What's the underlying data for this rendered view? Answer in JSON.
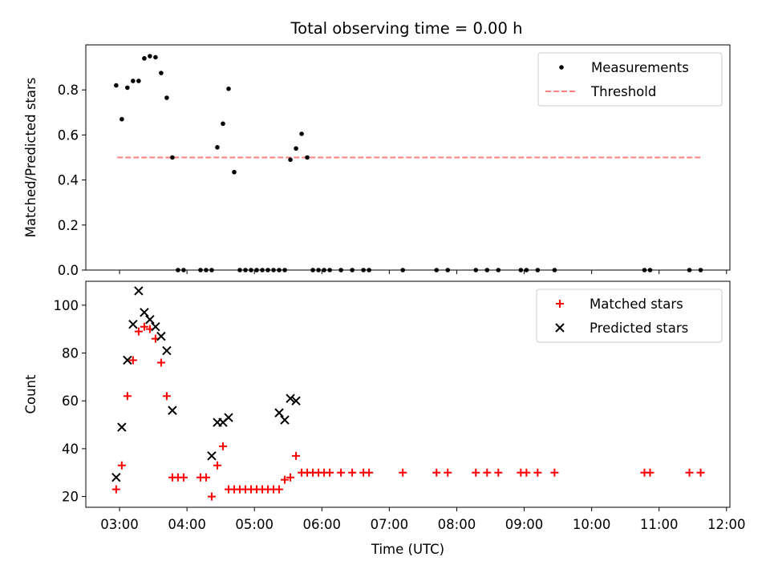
{
  "figure_title": "Total observing time = 0.00 h",
  "colors": {
    "measurement": "#000000",
    "threshold": "#ff7f7f",
    "matched": "#ff0000",
    "predicted": "#000000"
  },
  "chart_data": [
    {
      "type": "scatter",
      "panel": "top",
      "ylabel": "Matched/Predicted stars",
      "xlabel": "",
      "xlim_hours": [
        2.5,
        12.05
      ],
      "ylim": [
        0,
        1.0
      ],
      "yticks": [
        0.0,
        0.2,
        0.4,
        0.6,
        0.8
      ],
      "ytick_labels": [
        "0.0",
        "0.2",
        "0.4",
        "0.6",
        "0.8"
      ],
      "legend": {
        "position": "top-right",
        "entries": [
          "Measurements",
          "Threshold"
        ]
      },
      "threshold": {
        "name": "Threshold",
        "y": 0.5,
        "x_start": "02:58",
        "x_end": "11:37"
      },
      "series": [
        {
          "name": "Measurements",
          "x": [
            "02:57",
            "03:02",
            "03:07",
            "03:12",
            "03:17",
            "03:22",
            "03:27",
            "03:32",
            "03:37",
            "03:42",
            "03:47",
            "03:52",
            "03:57",
            "04:12",
            "04:17",
            "04:22",
            "04:27",
            "04:32",
            "04:37",
            "04:42",
            "04:47",
            "04:52",
            "04:57",
            "05:02",
            "05:07",
            "05:12",
            "05:17",
            "05:22",
            "05:27",
            "05:32",
            "05:37",
            "05:42",
            "05:47",
            "05:52",
            "05:57",
            "06:02",
            "06:07",
            "06:17",
            "06:27",
            "06:37",
            "06:42",
            "07:12",
            "07:42",
            "07:52",
            "08:17",
            "08:27",
            "08:37",
            "08:57",
            "09:02",
            "09:12",
            "09:27",
            "10:47",
            "10:52",
            "11:27",
            "11:37"
          ],
          "y": [
            0.82,
            0.67,
            0.81,
            0.84,
            0.84,
            0.94,
            0.95,
            0.945,
            0.875,
            0.765,
            0.5,
            0,
            0,
            0,
            0,
            0,
            0.545,
            0.65,
            0.805,
            0.435,
            0,
            0,
            0,
            0,
            0,
            0,
            0,
            0,
            0,
            0.49,
            0.54,
            0.605,
            0.5,
            0,
            0,
            0,
            0,
            0,
            0,
            0,
            0,
            0,
            0,
            0,
            0,
            0,
            0,
            0,
            0,
            0,
            0,
            0,
            0,
            0,
            0
          ]
        }
      ]
    },
    {
      "type": "scatter",
      "panel": "bottom",
      "ylabel": "Count",
      "xlabel": "Time (UTC)",
      "xlim_hours": [
        2.5,
        12.05
      ],
      "ylim": [
        15.5,
        110
      ],
      "yticks": [
        20,
        40,
        60,
        80,
        100
      ],
      "ytick_labels": [
        "20",
        "40",
        "60",
        "80",
        "100"
      ],
      "xticks_hours": [
        3,
        4,
        5,
        6,
        7,
        8,
        9,
        10,
        11,
        12
      ],
      "xtick_labels": [
        "03:00",
        "04:00",
        "05:00",
        "06:00",
        "07:00",
        "08:00",
        "09:00",
        "10:00",
        "11:00",
        "12:00"
      ],
      "legend": {
        "position": "top-right",
        "entries": [
          "Matched stars",
          "Predicted stars"
        ]
      },
      "series": [
        {
          "name": "Matched stars",
          "marker": "+",
          "x": [
            "02:57",
            "03:02",
            "03:07",
            "03:12",
            "03:17",
            "03:22",
            "03:27",
            "03:32",
            "03:37",
            "03:42",
            "03:47",
            "03:52",
            "03:57",
            "04:12",
            "04:17",
            "04:22",
            "04:27",
            "04:32",
            "04:37",
            "04:42",
            "04:47",
            "04:52",
            "04:57",
            "05:02",
            "05:07",
            "05:12",
            "05:17",
            "05:22",
            "05:27",
            "05:32",
            "05:37",
            "05:42",
            "05:47",
            "05:52",
            "05:57",
            "06:02",
            "06:07",
            "06:17",
            "06:27",
            "06:37",
            "06:42",
            "07:12",
            "07:42",
            "07:52",
            "08:17",
            "08:27",
            "08:37",
            "08:57",
            "09:02",
            "09:12",
            "09:27",
            "10:47",
            "10:52",
            "11:27",
            "11:37"
          ],
          "y": [
            23,
            33,
            62,
            77,
            89,
            91,
            90,
            86,
            76,
            62,
            28,
            28,
            28,
            28,
            28,
            20,
            33,
            41,
            23,
            23,
            23,
            23,
            23,
            23,
            23,
            23,
            23,
            23,
            27,
            28,
            37,
            30,
            30,
            30,
            30,
            30,
            30,
            30,
            30,
            30,
            30,
            30,
            30,
            30,
            30,
            30,
            30,
            30,
            30,
            30,
            30,
            30,
            30,
            30,
            30
          ]
        },
        {
          "name": "Predicted stars",
          "marker": "x",
          "x": [
            "02:57",
            "03:02",
            "03:07",
            "03:12",
            "03:17",
            "03:22",
            "03:27",
            "03:32",
            "03:37",
            "03:42",
            "03:47",
            "04:22",
            "04:27",
            "04:32",
            "04:37",
            "05:22",
            "05:27",
            "05:32",
            "05:37"
          ],
          "y": [
            28,
            49,
            77,
            92,
            106,
            97,
            94,
            91,
            87,
            81,
            56,
            37,
            51,
            51,
            53,
            55,
            52,
            61,
            60
          ]
        }
      ]
    }
  ]
}
